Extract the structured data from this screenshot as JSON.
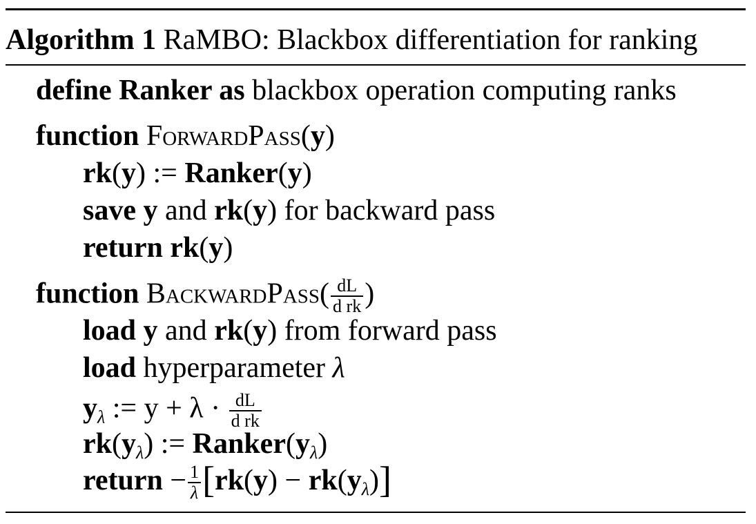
{
  "caption": {
    "label": "Algorithm 1",
    "title": "RaMBO: Blackbox differentiation for ranking"
  },
  "lines": [
    {
      "kw1": "define Ranker as",
      "text": "blackbox operation computing ranks"
    },
    {
      "kw": "function",
      "name": "ForwardPass",
      "arg": "y"
    },
    {
      "lhs": "rk",
      "arg": "y",
      "assign": ":=",
      "call": "Ranker"
    },
    {
      "kw": "save",
      "mid": "and",
      "tail": "for backward pass"
    },
    {
      "kw": "return",
      "fn": "rk",
      "arg": "y"
    },
    {
      "kw": "function",
      "name": "BackwardPass",
      "frac_num": "dL",
      "frac_den": "d rk"
    },
    {
      "kw": "load",
      "mid": "and",
      "tail": "from forward pass"
    },
    {
      "kw": "load",
      "text": "hyperparameter",
      "sym": "λ"
    },
    {
      "lhs": "y",
      "sub": "λ",
      "assign": ":=",
      "rhs": "y + λ ·"
    },
    {
      "lhs": "rk",
      "sub": "λ",
      "assign": ":=",
      "call": "Ranker"
    },
    {
      "kw": "return",
      "neg": "−",
      "frac_num": "1",
      "frac_den": "λ",
      "minus": "−"
    }
  ]
}
